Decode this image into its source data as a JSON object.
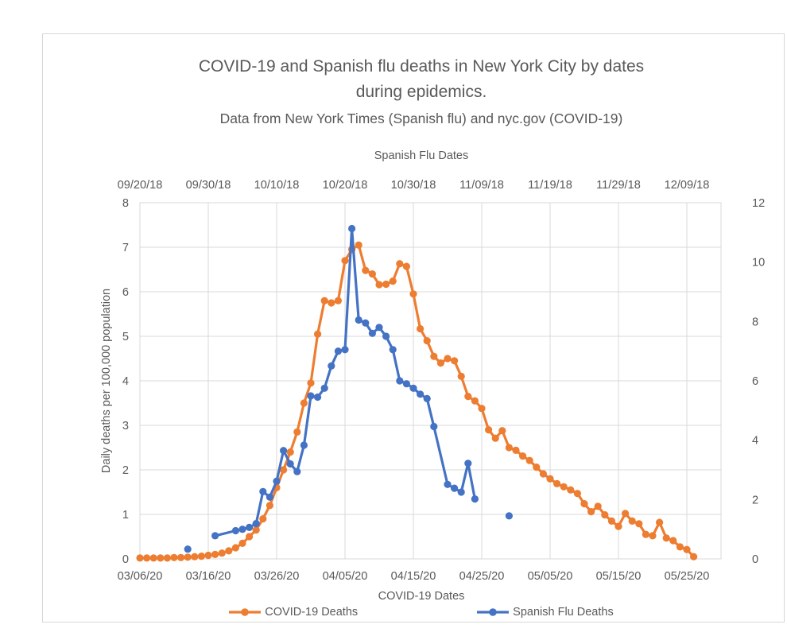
{
  "chart_data": {
    "type": "line",
    "title": "COVID-19 and Spanish flu deaths in New York City by dates during epidemics.",
    "title_lines": [
      "COVID-19 and Spanish flu deaths in New York City by dates",
      "during epidemics."
    ],
    "subtitle": "Data from New York Times (Spanish flu) and nyc.gov (COVID-19)",
    "legend_position": "bottom",
    "grid": true,
    "colors": {
      "gridline": "#d9d9d9",
      "plot_border": "#d9d9d9",
      "text": "#595959"
    },
    "top_axis": {
      "title": "Spanish Flu Dates",
      "ticks": [
        "09/20/18",
        "09/30/18",
        "10/10/18",
        "10/20/18",
        "10/30/18",
        "11/09/18",
        "11/19/18",
        "11/29/18",
        "12/09/18"
      ],
      "tick_interval_days": 10
    },
    "bottom_axis": {
      "title": "COVID-19 Dates",
      "ticks": [
        "03/06/20",
        "03/16/20",
        "03/26/20",
        "04/05/20",
        "04/15/20",
        "04/25/20",
        "05/05/20",
        "05/15/20",
        "05/25/20"
      ],
      "tick_interval_days": 10
    },
    "left_axis": {
      "title": "Daily deaths per 100,000 population",
      "min": 0,
      "max": 8,
      "tick_step": 1,
      "ticks": [
        0,
        1,
        2,
        3,
        4,
        5,
        6,
        7,
        8
      ]
    },
    "right_axis": {
      "title": "",
      "min": 0,
      "max": 12,
      "tick_step": 2,
      "ticks": [
        0,
        2,
        4,
        6,
        8,
        10,
        12
      ]
    },
    "series": [
      {
        "name": "COVID-19 Deaths",
        "color": "#ED7D31",
        "axis": "left",
        "start_date": "03/06/20",
        "note": "day offsets are days after start_date; daily values per 100,000 population",
        "points": [
          [
            0,
            0.02
          ],
          [
            1,
            0.02
          ],
          [
            2,
            0.02
          ],
          [
            3,
            0.02
          ],
          [
            4,
            0.02
          ],
          [
            5,
            0.03
          ],
          [
            6,
            0.03
          ],
          [
            7,
            0.04
          ],
          [
            8,
            0.05
          ],
          [
            9,
            0.06
          ],
          [
            10,
            0.08
          ],
          [
            11,
            0.1
          ],
          [
            12,
            0.13
          ],
          [
            13,
            0.18
          ],
          [
            14,
            0.25
          ],
          [
            15,
            0.35
          ],
          [
            16,
            0.5
          ],
          [
            17,
            0.65
          ],
          [
            18,
            0.9
          ],
          [
            19,
            1.2
          ],
          [
            20,
            1.6
          ],
          [
            21,
            2.0
          ],
          [
            22,
            2.4
          ],
          [
            23,
            2.85
          ],
          [
            24,
            3.5
          ],
          [
            25,
            3.95
          ],
          [
            26,
            5.05
          ],
          [
            27,
            5.8
          ],
          [
            28,
            5.75
          ],
          [
            29,
            5.8
          ],
          [
            30,
            6.7
          ],
          [
            31,
            6.95
          ],
          [
            32,
            7.05
          ],
          [
            33,
            6.48
          ],
          [
            34,
            6.4
          ],
          [
            35,
            6.16
          ],
          [
            36,
            6.17
          ],
          [
            37,
            6.24
          ],
          [
            38,
            6.63
          ],
          [
            39,
            6.57
          ],
          [
            40,
            5.95
          ],
          [
            41,
            5.17
          ],
          [
            42,
            4.9
          ],
          [
            43,
            4.55
          ],
          [
            44,
            4.4
          ],
          [
            45,
            4.5
          ],
          [
            46,
            4.45
          ],
          [
            47,
            4.1
          ],
          [
            48,
            3.65
          ],
          [
            49,
            3.55
          ],
          [
            50,
            3.38
          ],
          [
            51,
            2.9
          ],
          [
            52,
            2.71
          ],
          [
            53,
            2.88
          ],
          [
            54,
            2.5
          ],
          [
            55,
            2.44
          ],
          [
            56,
            2.31
          ],
          [
            57,
            2.21
          ],
          [
            58,
            2.06
          ],
          [
            59,
            1.91
          ],
          [
            60,
            1.8
          ],
          [
            61,
            1.69
          ],
          [
            62,
            1.62
          ],
          [
            63,
            1.55
          ],
          [
            64,
            1.47
          ],
          [
            65,
            1.24
          ],
          [
            66,
            1.06
          ],
          [
            67,
            1.18
          ],
          [
            68,
            0.99
          ],
          [
            69,
            0.85
          ],
          [
            70,
            0.73
          ],
          [
            71,
            1.02
          ],
          [
            72,
            0.85
          ],
          [
            73,
            0.79
          ],
          [
            74,
            0.55
          ],
          [
            75,
            0.52
          ],
          [
            76,
            0.82
          ],
          [
            77,
            0.47
          ],
          [
            78,
            0.41
          ],
          [
            79,
            0.27
          ],
          [
            80,
            0.21
          ],
          [
            81,
            0.05
          ]
        ]
      },
      {
        "name": "Spanish Flu Deaths",
        "color": "#4472C4",
        "axis": "right",
        "start_date": "09/20/18",
        "note": "day offsets are days after start_date; gaps >3 days break the line (isolated markers at days 7 and 54)",
        "points": [
          [
            7,
            0.33
          ],
          [
            11,
            0.78
          ],
          [
            14,
            0.95
          ],
          [
            15,
            1.0
          ],
          [
            16,
            1.06
          ],
          [
            17,
            1.19
          ],
          [
            18,
            2.27
          ],
          [
            19,
            2.08
          ],
          [
            20,
            2.62
          ],
          [
            21,
            3.65
          ],
          [
            22,
            3.2
          ],
          [
            23,
            2.94
          ],
          [
            24,
            3.83
          ],
          [
            25,
            5.49
          ],
          [
            26,
            5.45
          ],
          [
            27,
            5.75
          ],
          [
            28,
            6.5
          ],
          [
            29,
            7.0
          ],
          [
            30,
            7.05
          ],
          [
            31,
            11.13
          ],
          [
            32,
            8.05
          ],
          [
            33,
            7.95
          ],
          [
            34,
            7.6
          ],
          [
            35,
            7.8
          ],
          [
            36,
            7.5
          ],
          [
            37,
            7.05
          ],
          [
            38,
            6.0
          ],
          [
            39,
            5.9
          ],
          [
            40,
            5.75
          ],
          [
            41,
            5.55
          ],
          [
            42,
            5.4
          ],
          [
            43,
            4.46
          ],
          [
            45,
            2.51
          ],
          [
            46,
            2.38
          ],
          [
            47,
            2.25
          ],
          [
            48,
            3.22
          ],
          [
            49,
            2.02
          ],
          [
            54,
            1.45
          ]
        ]
      }
    ]
  }
}
